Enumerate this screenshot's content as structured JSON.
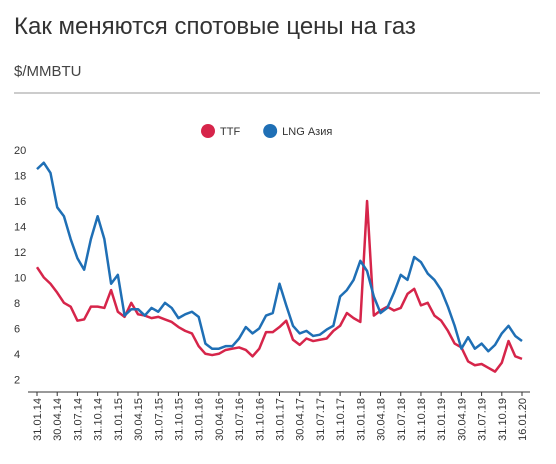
{
  "chart_data": {
    "type": "line",
    "title": "Как меняются спотовые цены на газ",
    "subtitle": "$/MMBTU",
    "categories": [
      "31.01.14",
      null,
      null,
      "30.04.14",
      null,
      null,
      "31.07.14",
      null,
      null,
      "31.10.14",
      null,
      null,
      "31.01.15",
      null,
      null,
      "30.04.15",
      null,
      null,
      "31.07.15",
      null,
      null,
      "31.10.15",
      null,
      null,
      "31.01.16",
      null,
      null,
      "30.04.16",
      null,
      null,
      "31.07.16",
      null,
      null,
      "31.10.16",
      null,
      null,
      "31.01.17",
      null,
      null,
      "30.04.17",
      null,
      null,
      "31.07.17",
      null,
      null,
      "31.10.17",
      null,
      null,
      "31.01.18",
      null,
      null,
      "30.04.18",
      null,
      null,
      "31.07.18",
      null,
      null,
      "31.10.18",
      null,
      null,
      "31.01.19",
      null,
      null,
      "30.04.19",
      null,
      null,
      "31.07.19",
      null,
      null,
      "31.10.19",
      null,
      null,
      "16.01.20"
    ],
    "series": [
      {
        "name": "TTF",
        "color": "#d6254a",
        "values": [
          10.8,
          10,
          9.5,
          8.8,
          8,
          7.7,
          6.6,
          6.7,
          7.7,
          7.7,
          7.6,
          9,
          7.3,
          6.9,
          8,
          7.1,
          7,
          6.8,
          6.9,
          6.7,
          6.5,
          6.1,
          5.8,
          5.6,
          4.6,
          4,
          3.9,
          4,
          4.3,
          4.4,
          4.5,
          4.3,
          3.8,
          4.4,
          5.7,
          5.7,
          6.1,
          6.6,
          5.1,
          4.7,
          5.2,
          5,
          5.1,
          5.2,
          5.8,
          6.2,
          7.2,
          6.8,
          6.5,
          16,
          7,
          7.4,
          7.7,
          7.4,
          7.6,
          8.7,
          9.1,
          7.8,
          8,
          7,
          6.6,
          5.8,
          4.8,
          4.5,
          3.4,
          3.1,
          3.2,
          2.9,
          2.6,
          3.3,
          5,
          3.8,
          3.6
        ]
      },
      {
        "name": "LNG Азия",
        "color": "#1f6fb5",
        "values": [
          18.5,
          19,
          18.2,
          15.5,
          14.8,
          13,
          11.5,
          10.6,
          13,
          14.8,
          13,
          9.5,
          10.2,
          7,
          7.5,
          7.5,
          7,
          7.6,
          7.3,
          8,
          7.6,
          6.8,
          7.1,
          7.3,
          6.9,
          4.8,
          4.4,
          4.4,
          4.6,
          4.6,
          5.2,
          6.1,
          5.6,
          6,
          7,
          7.2,
          9.5,
          7.8,
          6.2,
          5.6,
          5.8,
          5.4,
          5.5,
          5.9,
          6.2,
          8.5,
          9,
          9.8,
          11.3,
          10.5,
          8.5,
          7.2,
          7.6,
          8.8,
          10.2,
          9.8,
          11.6,
          11.2,
          10.3,
          9.8,
          9,
          7.7,
          6.2,
          4.4,
          5.3,
          4.4,
          4.8,
          4.2,
          4.7,
          5.6,
          6.2,
          5.4,
          5.0
        ]
      }
    ],
    "ylim": [
      1,
      20
    ],
    "yticks": [
      2,
      4,
      6,
      8,
      10,
      12,
      14,
      16,
      18,
      20
    ],
    "grid": false,
    "legend": "top"
  }
}
